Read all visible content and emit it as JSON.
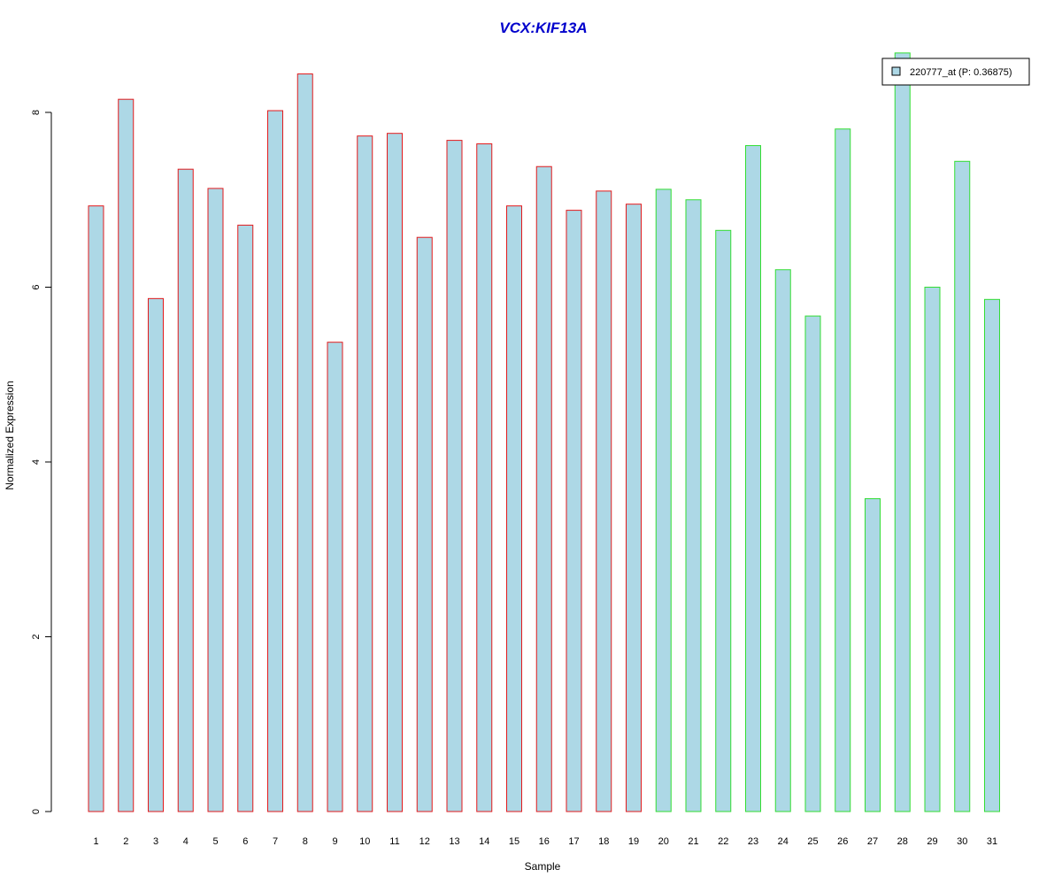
{
  "chart_data": {
    "type": "bar",
    "title": "VCX:KIF13A",
    "xlabel": "Sample",
    "ylabel": "Normalized Expression",
    "categories": [
      "1",
      "2",
      "3",
      "4",
      "5",
      "6",
      "7",
      "8",
      "9",
      "10",
      "11",
      "12",
      "13",
      "14",
      "15",
      "16",
      "17",
      "18",
      "19",
      "20",
      "21",
      "22",
      "23",
      "24",
      "25",
      "26",
      "27",
      "28",
      "29",
      "30",
      "31"
    ],
    "series": [
      {
        "name": "220777_at (P: 0.36875)",
        "values": [
          6.93,
          8.15,
          5.87,
          7.35,
          7.13,
          6.71,
          8.02,
          8.44,
          5.37,
          7.73,
          7.76,
          6.57,
          7.68,
          7.64,
          6.93,
          7.38,
          6.88,
          7.1,
          6.95,
          7.12,
          7.0,
          6.65,
          7.62,
          6.2,
          5.67,
          7.81,
          3.58,
          8.68,
          6.0,
          7.44,
          5.86
        ]
      }
    ],
    "group_border_colors": [
      "#e31a1c",
      "#e31a1c",
      "#e31a1c",
      "#e31a1c",
      "#e31a1c",
      "#e31a1c",
      "#e31a1c",
      "#e31a1c",
      "#e31a1c",
      "#e31a1c",
      "#e31a1c",
      "#e31a1c",
      "#e31a1c",
      "#e31a1c",
      "#e31a1c",
      "#e31a1c",
      "#e31a1c",
      "#e31a1c",
      "#e31a1c",
      "#33dd33",
      "#33dd33",
      "#33dd33",
      "#33dd33",
      "#33dd33",
      "#33dd33",
      "#33dd33",
      "#33dd33",
      "#33dd33",
      "#33dd33",
      "#33dd33",
      "#33dd33"
    ],
    "bar_fill": "#add8e6",
    "title_color": "#0000cc",
    "y_ticks": [
      "0",
      "2",
      "4",
      "6",
      "8"
    ],
    "ylim": [
      0,
      8.7
    ],
    "grid": false,
    "legend_position": "top-right"
  }
}
